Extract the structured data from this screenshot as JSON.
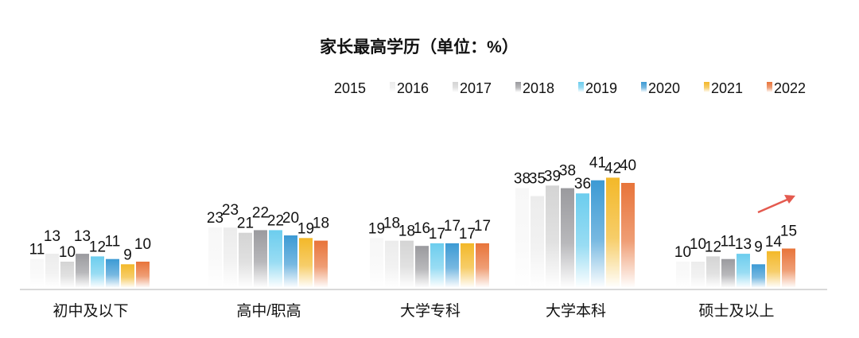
{
  "chart_data": {
    "type": "bar",
    "title": "家长最高学历（单位：%）",
    "categories": [
      "初中及以下",
      "高中/职高",
      "大学专科",
      "大学本科",
      "硕士及以上"
    ],
    "series": [
      {
        "name": "2015",
        "color": "#f7f7f7",
        "values": [
          11,
          23,
          19,
          38,
          10
        ]
      },
      {
        "name": "2016",
        "color": "#ececec",
        "values": [
          13,
          23,
          18,
          35,
          10
        ]
      },
      {
        "name": "2017",
        "color": "#d4d4d4",
        "values": [
          10,
          21,
          18,
          39,
          12
        ]
      },
      {
        "name": "2018",
        "color": "#9a9a9e",
        "values": [
          13,
          22,
          16,
          38,
          11
        ]
      },
      {
        "name": "2019",
        "color": "#6ccdee",
        "values": [
          12,
          22,
          17,
          36,
          13
        ]
      },
      {
        "name": "2020",
        "color": "#3c9ad4",
        "values": [
          11,
          20,
          17,
          41,
          9
        ]
      },
      {
        "name": "2021",
        "color": "#f3b829",
        "values": [
          9,
          19,
          17,
          42,
          14
        ]
      },
      {
        "name": "2022",
        "color": "#e8743a",
        "values": [
          10,
          18,
          17,
          40,
          15
        ]
      }
    ],
    "xlabel": "",
    "ylabel": "",
    "ylim": [
      0,
      45
    ],
    "legend_position": "top-right",
    "grid": false,
    "annotation": "trend-up-arrow"
  }
}
